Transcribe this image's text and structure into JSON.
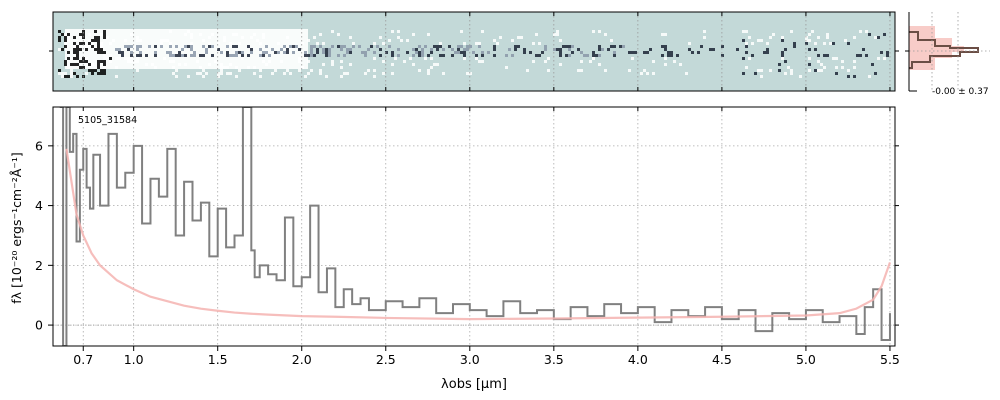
{
  "chart_data": [
    {
      "type": "heatmap",
      "panel": "2d-spectrum",
      "xlim": [
        0.52,
        5.53
      ],
      "colors": {
        "background": "#c3d9d8",
        "dark": "#1c2436"
      },
      "note_values": []
    },
    {
      "type": "line",
      "panel": "1d-spectrum",
      "object_label": "5105_31584",
      "xlabel": "λobs [μm]",
      "ylabel": "fλ [10⁻²⁰ ergs⁻¹cm⁻²Å⁻¹]",
      "x_ticks": [
        0.7,
        1.0,
        1.5,
        2.0,
        2.5,
        3.0,
        3.5,
        4.0,
        4.5,
        5.0,
        5.5
      ],
      "x_tick_labels": [
        "0.7",
        "1.0",
        "1.5",
        "2.0",
        "2.5",
        "3.0",
        "3.5",
        "4.0",
        "4.5",
        "5.0",
        "5.5"
      ],
      "y_ticks": [
        0,
        2,
        4,
        6
      ],
      "y_tick_labels": [
        "0",
        "2",
        "4",
        "6"
      ],
      "ylim": [
        -0.7,
        7.3
      ],
      "xlim": [
        0.52,
        5.53
      ],
      "grid": true,
      "series": [
        {
          "color": "#808080",
          "x": [
            0.56,
            0.58,
            0.6,
            0.62,
            0.64,
            0.66,
            0.68,
            0.7,
            0.72,
            0.74,
            0.76,
            0.8,
            0.85,
            0.9,
            0.95,
            1.0,
            1.05,
            1.1,
            1.15,
            1.2,
            1.25,
            1.3,
            1.35,
            1.4,
            1.45,
            1.5,
            1.55,
            1.6,
            1.65,
            1.7,
            1.72,
            1.75,
            1.8,
            1.85,
            1.9,
            1.95,
            2.0,
            2.05,
            2.1,
            2.15,
            2.2,
            2.25,
            2.3,
            2.35,
            2.4,
            2.5,
            2.6,
            2.7,
            2.8,
            2.9,
            3.0,
            3.1,
            3.2,
            3.3,
            3.4,
            3.5,
            3.6,
            3.7,
            3.8,
            3.9,
            4.0,
            4.1,
            4.2,
            4.3,
            4.4,
            4.5,
            4.6,
            4.7,
            4.8,
            4.9,
            5.0,
            5.1,
            5.2,
            5.3,
            5.35,
            5.4,
            5.45,
            5.5
          ],
          "y": [
            7.3,
            -0.7,
            7.3,
            5.8,
            6.4,
            2.8,
            5.2,
            5.9,
            4.6,
            3.9,
            5.7,
            4.0,
            6.4,
            4.6,
            5.1,
            6.0,
            3.4,
            4.9,
            4.3,
            5.9,
            3.0,
            4.8,
            3.5,
            4.1,
            2.3,
            3.9,
            2.6,
            3.0,
            7.3,
            2.5,
            1.6,
            2.0,
            1.7,
            1.5,
            3.6,
            1.3,
            1.6,
            4.0,
            1.1,
            1.9,
            0.6,
            1.2,
            0.7,
            0.9,
            0.5,
            0.8,
            0.6,
            0.9,
            0.4,
            0.7,
            0.5,
            0.3,
            0.8,
            0.4,
            0.5,
            0.2,
            0.6,
            0.3,
            0.7,
            0.4,
            0.6,
            0.1,
            0.5,
            0.3,
            0.6,
            0.2,
            0.5,
            -0.2,
            0.4,
            0.2,
            0.5,
            0.1,
            0.3,
            -0.3,
            0.6,
            1.2,
            -0.5,
            0.4
          ]
        },
        {
          "color": "#f4b3b0",
          "x": [
            0.6,
            0.63,
            0.66,
            0.7,
            0.75,
            0.8,
            0.9,
            1.0,
            1.1,
            1.2,
            1.3,
            1.4,
            1.5,
            1.6,
            1.7,
            1.8,
            2.0,
            2.2,
            2.5,
            3.0,
            3.5,
            4.0,
            4.5,
            5.0,
            5.2,
            5.3,
            5.4,
            5.45,
            5.5
          ],
          "y": [
            5.9,
            4.8,
            3.7,
            3.0,
            2.4,
            2.0,
            1.5,
            1.2,
            0.95,
            0.8,
            0.65,
            0.55,
            0.48,
            0.42,
            0.38,
            0.35,
            0.3,
            0.28,
            0.24,
            0.2,
            0.22,
            0.25,
            0.28,
            0.32,
            0.4,
            0.55,
            0.85,
            1.3,
            2.1
          ]
        }
      ]
    },
    {
      "type": "line",
      "panel": "profile",
      "annotation": "-0.00 ± 0.37",
      "colors": {
        "fill": "#f7c6c2",
        "line": "#6b4e45"
      }
    }
  ]
}
